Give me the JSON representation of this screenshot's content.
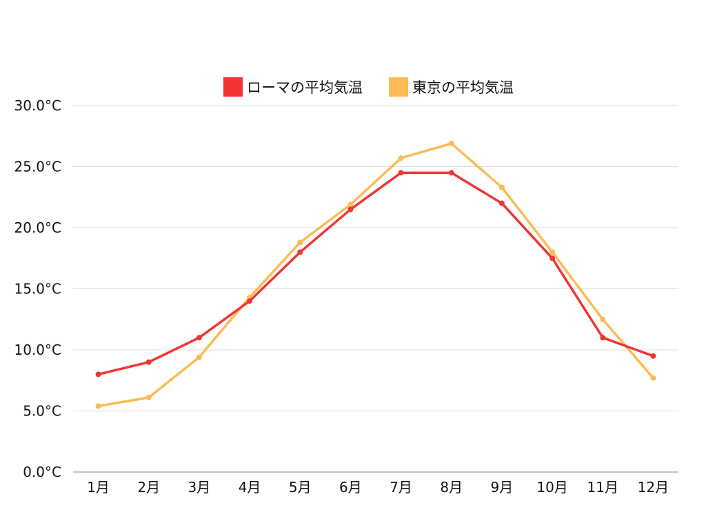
{
  "chart_data": {
    "type": "line",
    "categories": [
      "1月",
      "2月",
      "3月",
      "4月",
      "5月",
      "6月",
      "7月",
      "8月",
      "9月",
      "10月",
      "11月",
      "12月"
    ],
    "series": [
      {
        "name": "ローマの平均気温",
        "color": "#f23434",
        "values": [
          8.0,
          9.0,
          11.0,
          14.0,
          18.0,
          21.5,
          24.5,
          24.5,
          22.0,
          17.5,
          11.0,
          9.5
        ]
      },
      {
        "name": "東京の平均気温",
        "color": "#fdbb55",
        "values": [
          5.4,
          6.1,
          9.4,
          14.3,
          18.8,
          21.9,
          25.7,
          26.9,
          23.3,
          18.0,
          12.5,
          7.7
        ]
      }
    ],
    "yticks": [
      "0.0°C",
      "5.0°C",
      "10.0°C",
      "15.0°C",
      "20.0°C",
      "25.0°C",
      "30.0°C"
    ],
    "ylim": [
      0,
      30
    ],
    "ytick_step": 5,
    "grid": true,
    "legend_position": "top-center"
  }
}
